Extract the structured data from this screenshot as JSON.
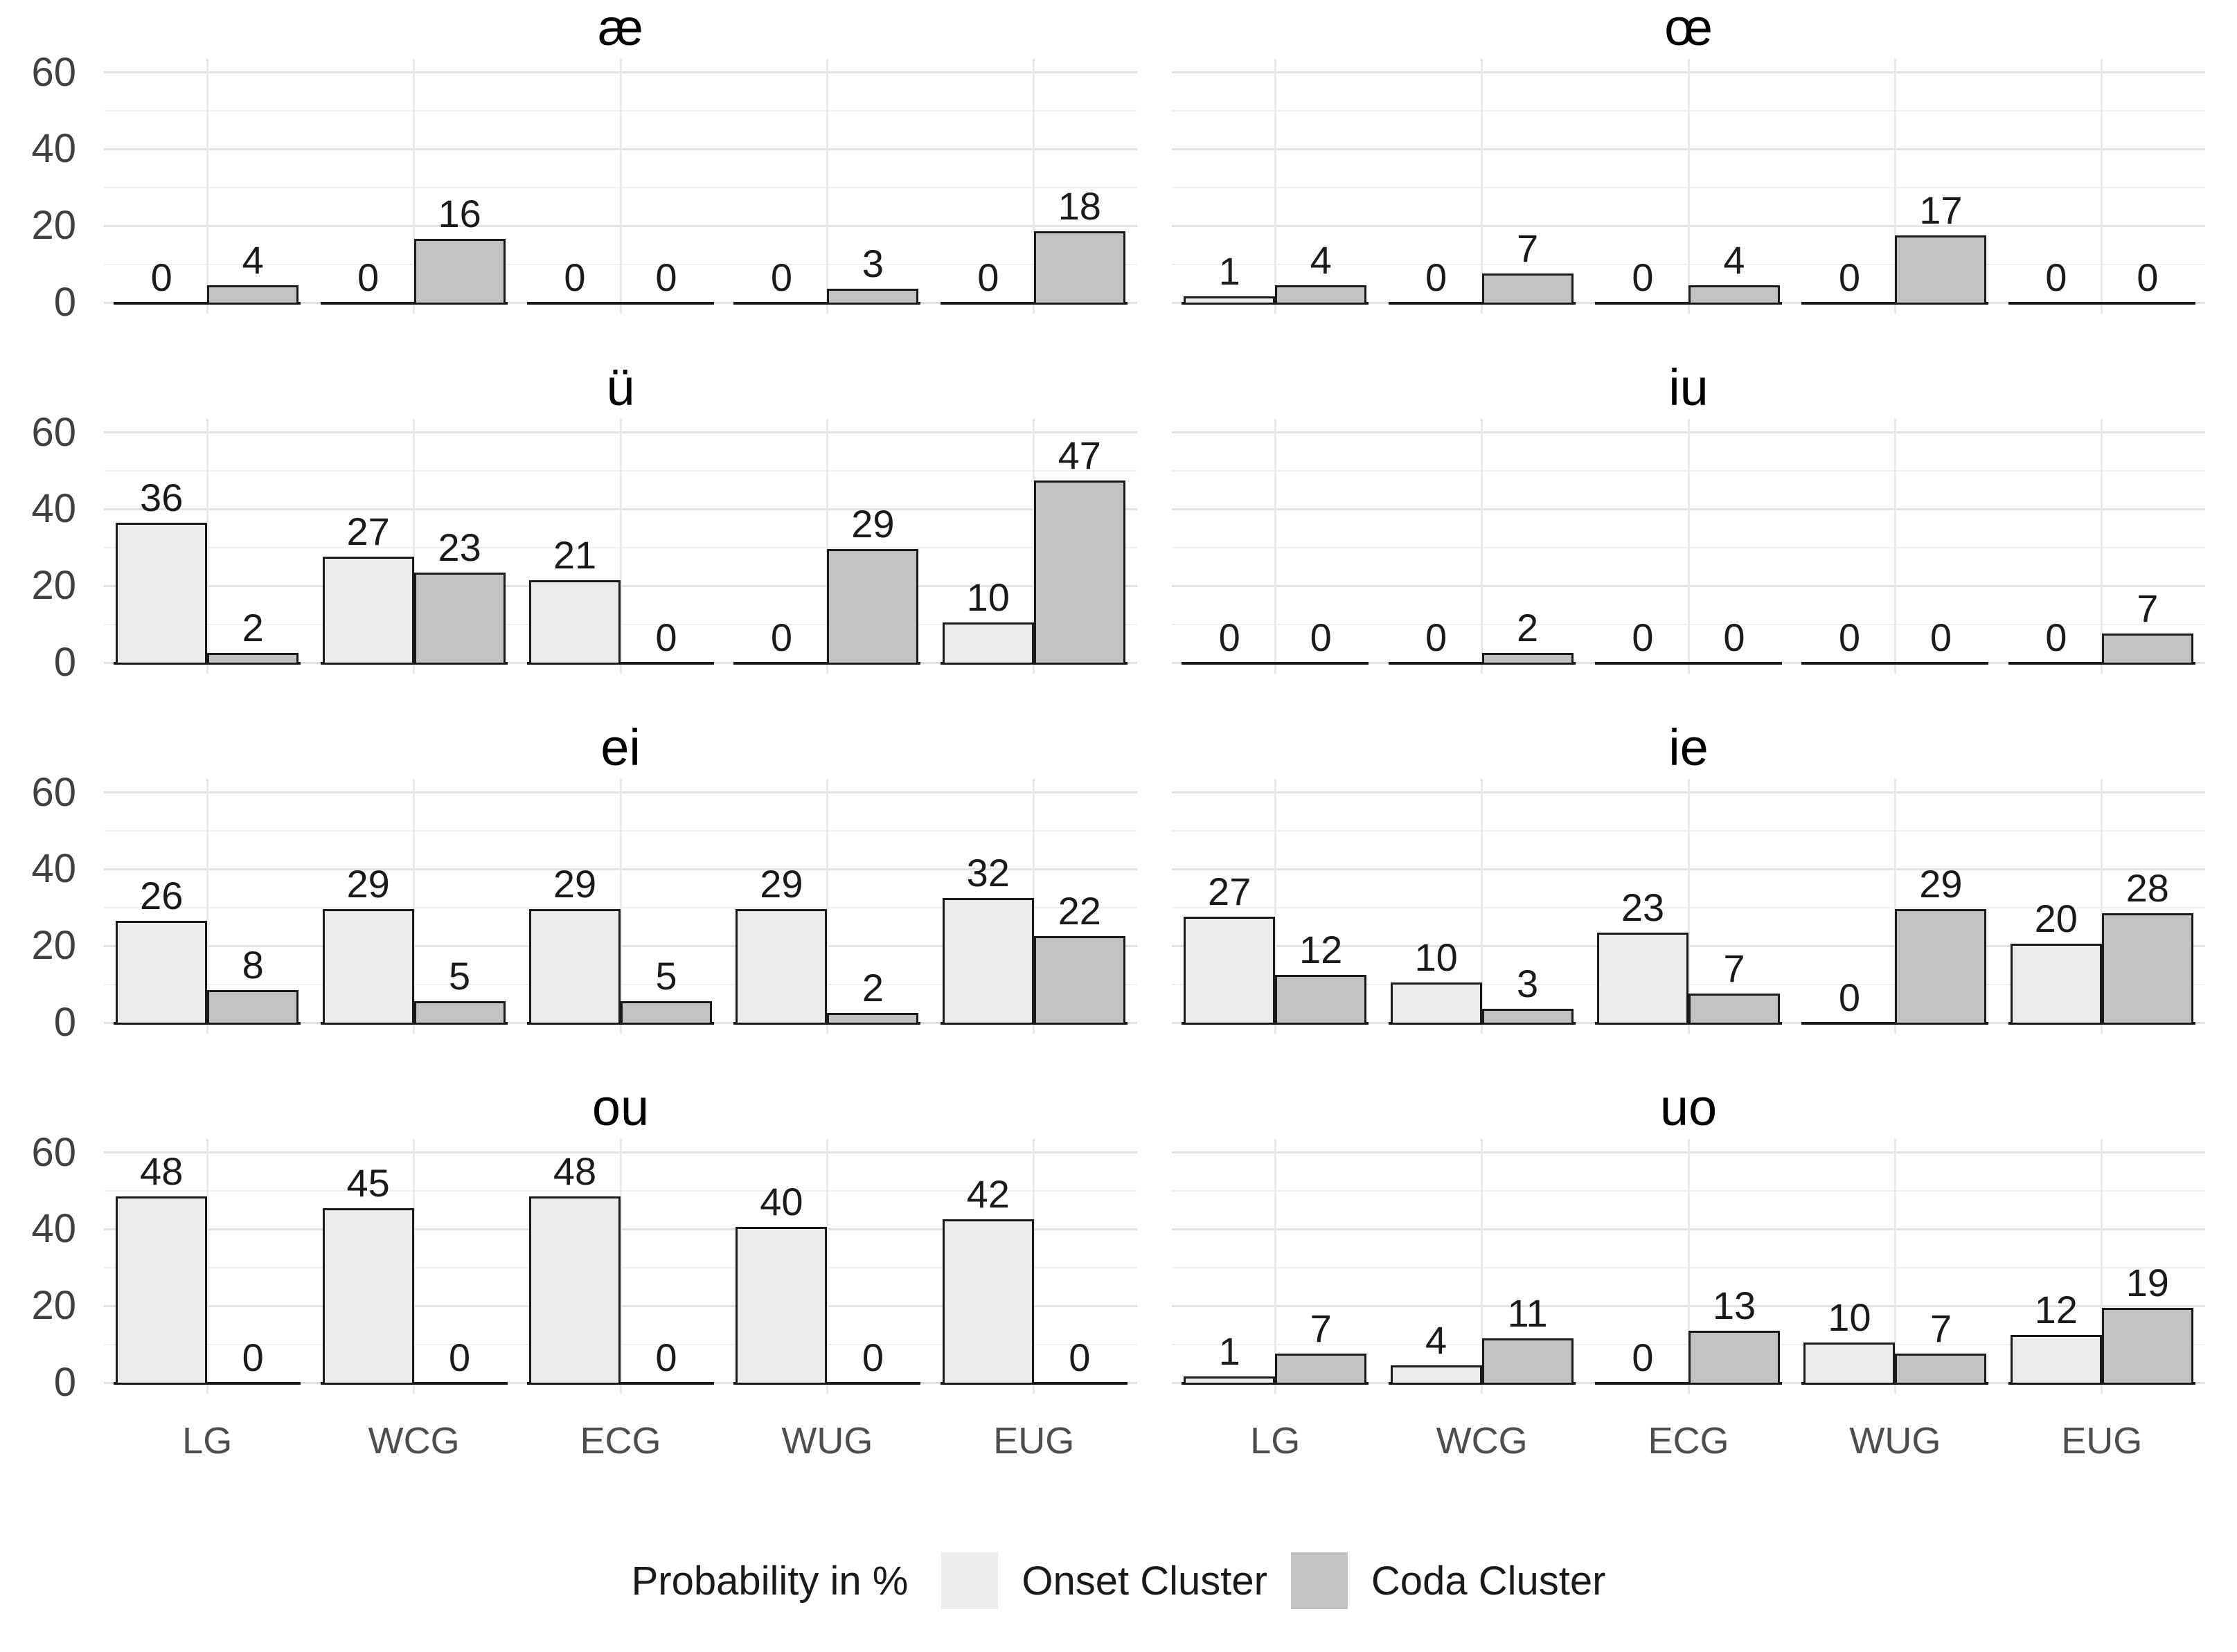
{
  "chart_data": {
    "type": "bar",
    "title": "",
    "categories": [
      "LG",
      "WCG",
      "ECG",
      "WUG",
      "EUG"
    ],
    "ylim": [
      0,
      60
    ],
    "yticks": [
      0,
      20,
      40,
      60
    ],
    "yticks_minor": [
      10,
      30,
      50
    ],
    "grid": true,
    "legend_position": "bottom",
    "legend_title": "Probability in %",
    "series_names": [
      "Onset Cluster",
      "Coda Cluster"
    ],
    "panels": [
      {
        "title": "æ",
        "series": [
          {
            "name": "Onset Cluster",
            "values": [
              0,
              0,
              0,
              0,
              0
            ]
          },
          {
            "name": "Coda Cluster",
            "values": [
              4,
              16,
              0,
              3,
              18
            ]
          }
        ]
      },
      {
        "title": "œ",
        "series": [
          {
            "name": "Onset Cluster",
            "values": [
              1,
              0,
              0,
              0,
              0
            ]
          },
          {
            "name": "Coda Cluster",
            "values": [
              4,
              7,
              4,
              17,
              0
            ]
          }
        ]
      },
      {
        "title": "ü",
        "series": [
          {
            "name": "Onset Cluster",
            "values": [
              36,
              27,
              21,
              0,
              10
            ]
          },
          {
            "name": "Coda Cluster",
            "values": [
              2,
              23,
              0,
              29,
              47
            ]
          }
        ]
      },
      {
        "title": "iu",
        "series": [
          {
            "name": "Onset Cluster",
            "values": [
              0,
              0,
              0,
              0,
              0
            ]
          },
          {
            "name": "Coda Cluster",
            "values": [
              0,
              2,
              0,
              0,
              7
            ]
          }
        ]
      },
      {
        "title": "ei",
        "series": [
          {
            "name": "Onset Cluster",
            "values": [
              26,
              29,
              29,
              29,
              32
            ]
          },
          {
            "name": "Coda Cluster",
            "values": [
              8,
              5,
              5,
              2,
              22
            ]
          }
        ]
      },
      {
        "title": "ie",
        "series": [
          {
            "name": "Onset Cluster",
            "values": [
              27,
              10,
              23,
              0,
              20
            ]
          },
          {
            "name": "Coda Cluster",
            "values": [
              12,
              3,
              7,
              29,
              28
            ]
          }
        ]
      },
      {
        "title": "ou",
        "series": [
          {
            "name": "Onset Cluster",
            "values": [
              48,
              45,
              48,
              40,
              42
            ]
          },
          {
            "name": "Coda Cluster",
            "values": [
              0,
              0,
              0,
              0,
              0
            ]
          }
        ]
      },
      {
        "title": "uo",
        "series": [
          {
            "name": "Onset Cluster",
            "values": [
              1,
              4,
              0,
              10,
              12
            ]
          },
          {
            "name": "Coda Cluster",
            "values": [
              7,
              11,
              13,
              7,
              19
            ]
          }
        ]
      }
    ]
  },
  "legend": {
    "title": "Probability in %",
    "items": [
      {
        "label": "Onset Cluster",
        "color": "#ececec"
      },
      {
        "label": "Coda Cluster",
        "color": "#c2c2c2"
      }
    ]
  },
  "colors": {
    "onset_fill": "#ececec",
    "coda_fill": "#c2c2c2",
    "bar_border": "#1a1a1a",
    "grid_major": "#e2e2e2",
    "grid_minor": "#f0f0f0",
    "axis_text": "#404040",
    "title_text": "#000000",
    "background": "#ffffff"
  }
}
